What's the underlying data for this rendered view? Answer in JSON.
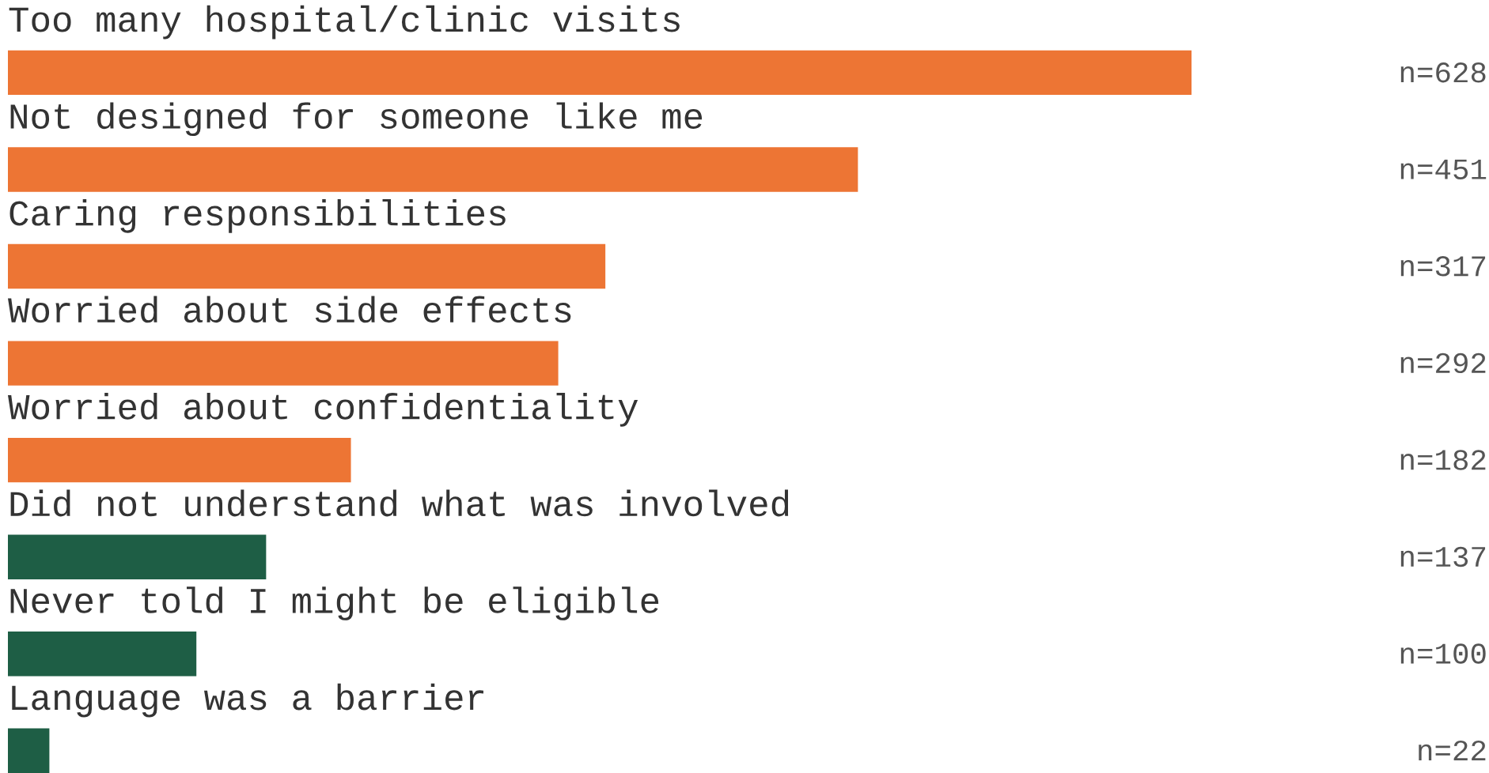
{
  "chart_data": {
    "type": "bar",
    "orientation": "horizontal",
    "categories": [
      "Too many hospital/clinic visits",
      "Not designed for someone like me",
      "Caring responsibilities",
      "Worried about side effects",
      "Worried about confidentiality",
      "Did not understand what was involved",
      "Never told I might be eligible",
      "Language was a barrier"
    ],
    "values": [
      628,
      451,
      317,
      292,
      182,
      137,
      100,
      22
    ],
    "value_labels": [
      "n=628",
      "n=451",
      "n=317",
      "n=292",
      "n=182",
      "n=137",
      "n=100",
      "n=22"
    ],
    "colors": [
      "#ed7534",
      "#ed7534",
      "#ed7534",
      "#ed7534",
      "#ed7534",
      "#1e5e45",
      "#1e5e45",
      "#1e5e45"
    ],
    "legend": false
  }
}
